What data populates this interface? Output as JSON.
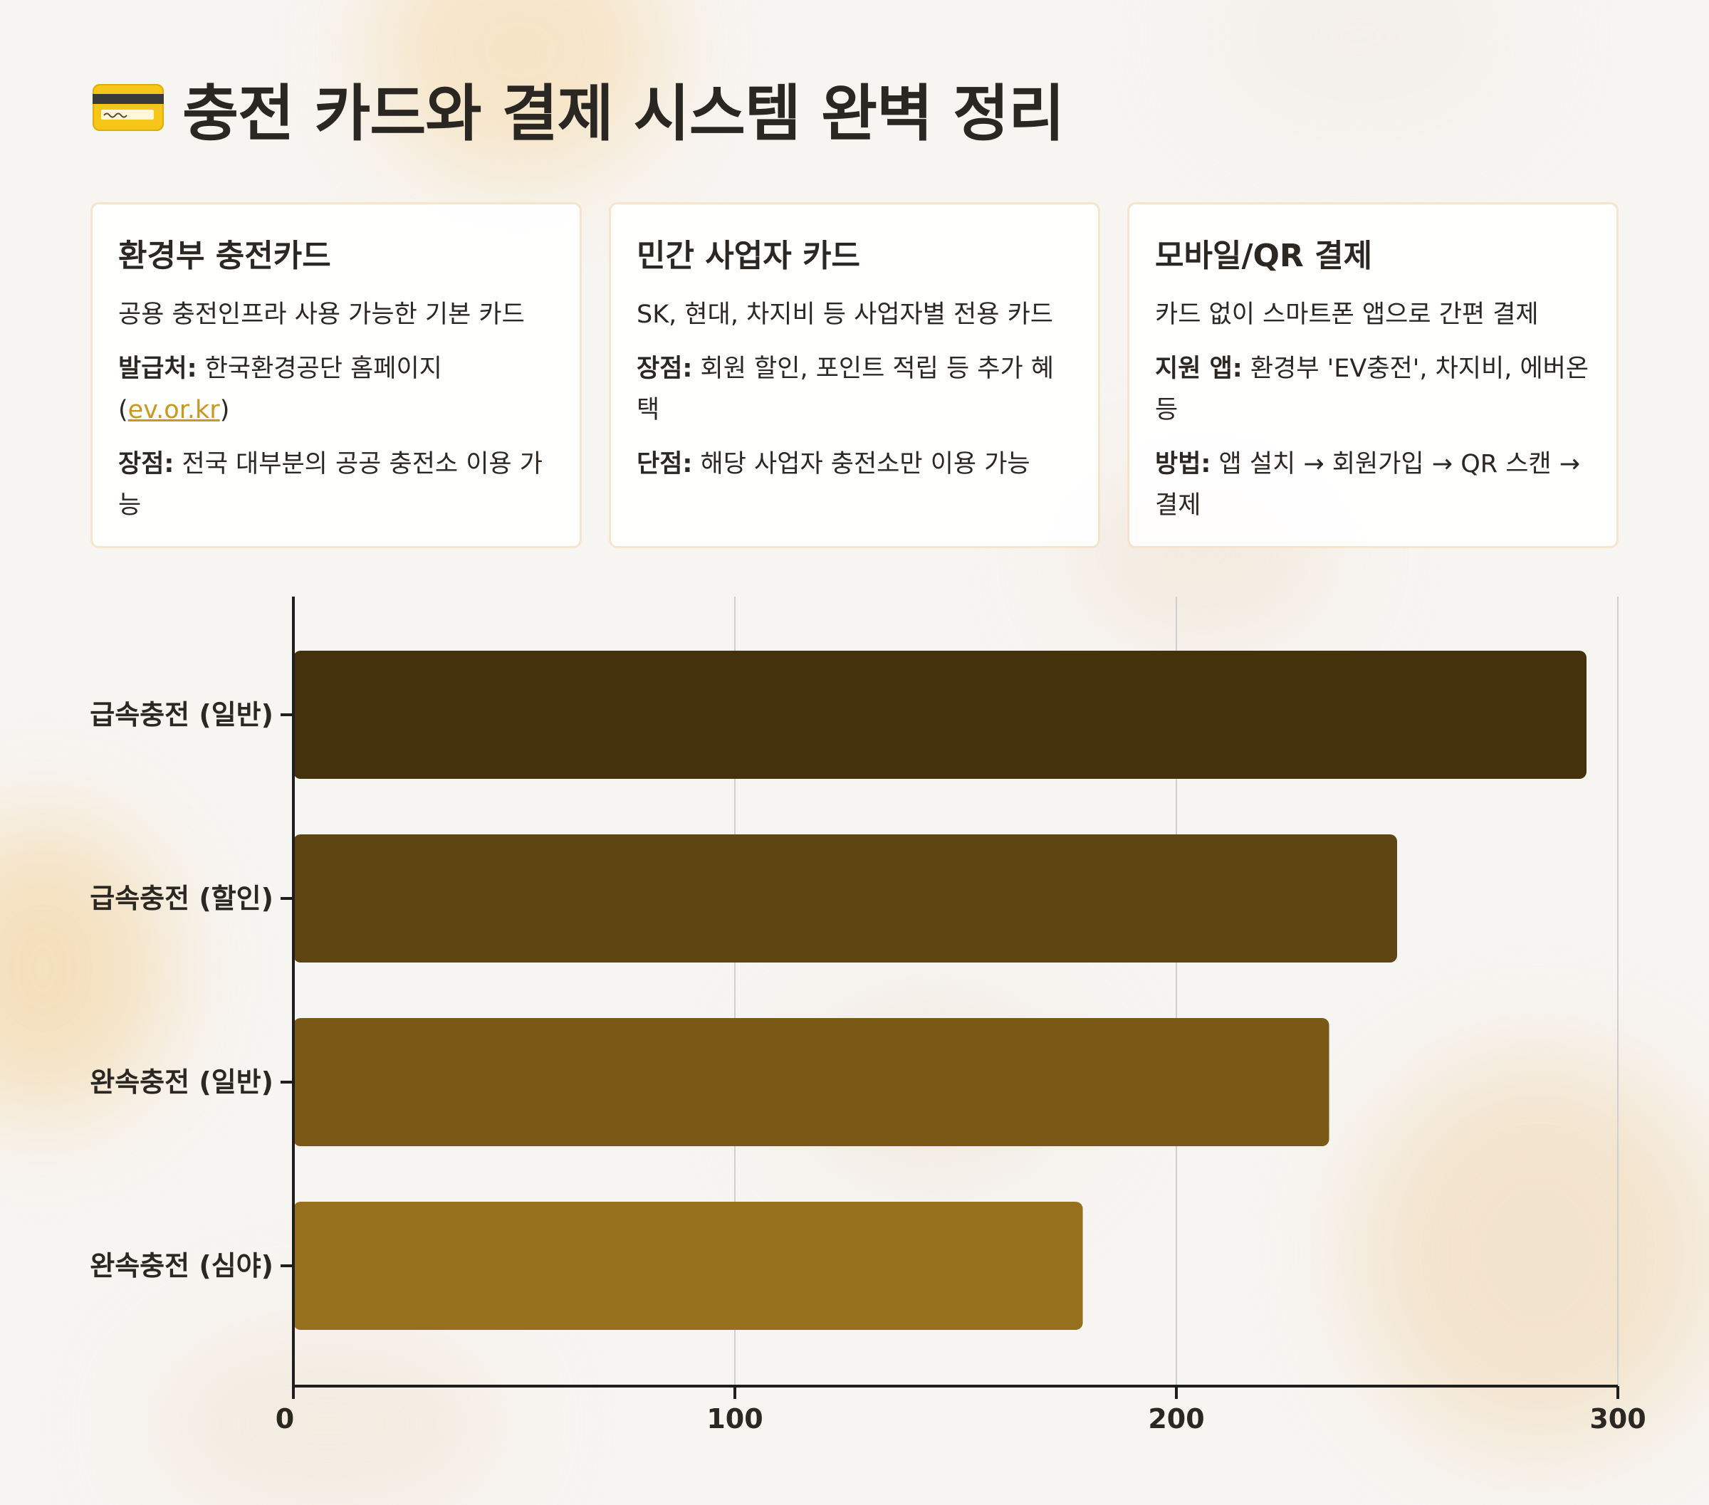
{
  "page": {
    "title": "충전 카드와 결제 시스템 완벽 정리",
    "title_icon": "credit-card-icon"
  },
  "cards": [
    {
      "title": "환경부 충전카드",
      "lines": [
        {
          "label": "",
          "text": "공용 충전인프라 사용 가능한 기본 카드"
        },
        {
          "label": "발급처:",
          "text": " 한국환경공단 홈페이지 (",
          "link": "ev.or.kr",
          "suffix": ")"
        },
        {
          "label": "장점:",
          "text": " 전국 대부분의 공공 충전소 이용 가능"
        }
      ]
    },
    {
      "title": "민간 사업자 카드",
      "lines": [
        {
          "label": "",
          "text": "SK, 현대, 차지비 등 사업자별 전용 카드"
        },
        {
          "label": "장점:",
          "text": " 회원 할인, 포인트 적립 등 추가 혜택"
        },
        {
          "label": "단점:",
          "text": " 해당 사업자 충전소만 이용 가능"
        }
      ]
    },
    {
      "title": "모바일/QR 결제",
      "lines": [
        {
          "label": "",
          "text": "카드 없이 스마트폰 앱으로 간편 결제"
        },
        {
          "label": "지원 앱:",
          "text": " 환경부 'EV충전', 차지비, 에버온 등"
        },
        {
          "label": "방법:",
          "text": " 앱 설치 → 회원가입 → QR 스캔 → 결제"
        }
      ]
    }
  ],
  "chart_data": {
    "type": "bar",
    "orientation": "horizontal",
    "categories": [
      "급속충전 (일반)",
      "급속충전 (할인)",
      "완속충전 (일반)",
      "완속충전 (심야)"
    ],
    "values": [
      292.9,
      250,
      234.6,
      178.8
    ],
    "colors": [
      "#44320c",
      "#5e4511",
      "#7a5816",
      "#97701e"
    ],
    "xlim": [
      0,
      300
    ],
    "xticks": [
      0,
      100,
      200,
      300
    ],
    "grid": true,
    "title": "",
    "xlabel": "",
    "ylabel": ""
  }
}
